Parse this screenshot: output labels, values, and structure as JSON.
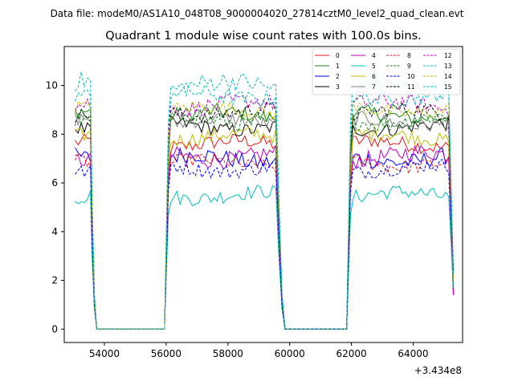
{
  "chart_data": {
    "type": "line",
    "suptitle": "Data file: modeM0/AS1A10_048T08_9000004020_27814cztM0_level2_quad_clean.evt",
    "title": "Quadrant 1 module wise count rates with 100.0s bins.",
    "xlabel": "",
    "ylabel": "",
    "x_offset_label": "+3.434e8",
    "xlim": [
      52700,
      65600
    ],
    "ylim": [
      -0.55,
      11.6
    ],
    "x_ticks": [
      54000,
      56000,
      58000,
      60000,
      62000,
      64000
    ],
    "x_tick_labels": [
      "54000",
      "56000",
      "58000",
      "60000",
      "62000",
      "64000"
    ],
    "y_ticks": [
      0,
      2,
      4,
      6,
      8,
      10
    ],
    "y_tick_labels": [
      "0",
      "2",
      "4",
      "6",
      "8",
      "10"
    ],
    "grid": false,
    "legend_position": "top-right",
    "segments": [
      {
        "type": "on",
        "start": 53050,
        "end": 53600
      },
      {
        "type": "fall",
        "start": 53600,
        "end": 53750
      },
      {
        "type": "zero",
        "start": 53750,
        "end": 55950
      },
      {
        "type": "rise",
        "start": 55950,
        "end": 56150
      },
      {
        "type": "on",
        "start": 56150,
        "end": 59650
      },
      {
        "type": "fall",
        "start": 59650,
        "end": 59850
      },
      {
        "type": "zero",
        "start": 59850,
        "end": 61850
      },
      {
        "type": "rise",
        "start": 61850,
        "end": 62050
      },
      {
        "type": "on",
        "start": 62050,
        "end": 65250
      },
      {
        "type": "end_drop",
        "start": 65250,
        "end": 65300
      }
    ],
    "series": [
      {
        "name": "0",
        "color": "#e41a1c",
        "dash": "solid",
        "level": 7.6,
        "amp": 0.3
      },
      {
        "name": "1",
        "color": "#1a8a1a",
        "dash": "solid",
        "level": 8.8,
        "amp": 0.3
      },
      {
        "name": "2",
        "color": "#0000ff",
        "dash": "solid",
        "level": 7.0,
        "amp": 0.35
      },
      {
        "name": "3",
        "color": "#000000",
        "dash": "solid",
        "level": 8.3,
        "amp": 0.3
      },
      {
        "name": "4",
        "color": "#bf00bf",
        "dash": "solid",
        "level": 7.1,
        "amp": 0.35
      },
      {
        "name": "5",
        "color": "#00bfbf",
        "dash": "solid",
        "level": 5.5,
        "amp": 0.3
      },
      {
        "name": "6",
        "color": "#bfbf00",
        "dash": "solid",
        "level": 7.9,
        "amp": 0.3
      },
      {
        "name": "7",
        "color": "#808080",
        "dash": "solid",
        "level": 8.5,
        "amp": 0.3
      },
      {
        "name": "8",
        "color": "#e41a1c",
        "dash": "dashed",
        "level": 6.8,
        "amp": 0.3
      },
      {
        "name": "9",
        "color": "#1a8a1a",
        "dash": "dashed",
        "level": 8.6,
        "amp": 0.35
      },
      {
        "name": "10",
        "color": "#0000ff",
        "dash": "dashed",
        "level": 6.6,
        "amp": 0.3
      },
      {
        "name": "11",
        "color": "#000000",
        "dash": "dashed",
        "level": 8.9,
        "amp": 0.3
      },
      {
        "name": "12",
        "color": "#bf00bf",
        "dash": "dashed",
        "level": 9.2,
        "amp": 0.35
      },
      {
        "name": "13",
        "color": "#00bfbf",
        "dash": "dashed",
        "level": 10.0,
        "amp": 0.4
      },
      {
        "name": "14",
        "color": "#bfbf00",
        "dash": "dashed",
        "level": 9.0,
        "amp": 0.3
      },
      {
        "name": "15",
        "color": "#00bfbf",
        "dash": "dashed",
        "level": 9.6,
        "amp": 0.35
      }
    ]
  }
}
